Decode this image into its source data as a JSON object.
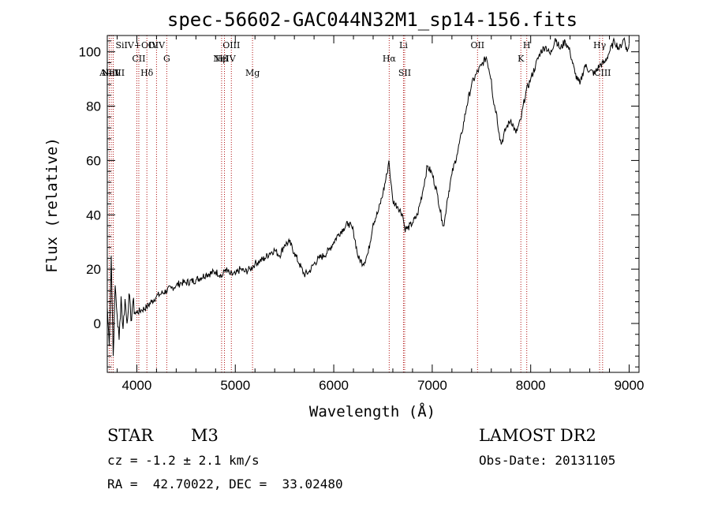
{
  "chart_data": {
    "type": "line",
    "title": "spec-56602-GAC044N32M1_sp14-156.fits",
    "xlabel": "Wavelength (Å)",
    "ylabel": "Flux (relative)",
    "xlim": [
      3700,
      9100
    ],
    "ylim": [
      -18,
      106
    ],
    "x_ticks": [
      4000,
      5000,
      6000,
      7000,
      8000,
      9000
    ],
    "y_ticks": [
      0,
      20,
      40,
      60,
      80,
      100
    ],
    "grid": false,
    "series": [
      {
        "x": [
          3700,
          3720,
          3740,
          3760,
          3780,
          3800,
          3820,
          3840,
          3860,
          3880,
          3900,
          3920,
          3940,
          3960,
          3980,
          4000,
          4050,
          4100,
          4150,
          4200,
          4250,
          4300,
          4350,
          4400,
          4450,
          4500,
          4600,
          4700,
          4800,
          4850,
          4860,
          4900,
          4950,
          5000,
          5050,
          5100,
          5150,
          5200,
          5250,
          5300,
          5350,
          5400,
          5450,
          5500,
          5550,
          5600,
          5650,
          5700,
          5750,
          5800,
          5850,
          5900,
          5950,
          6000,
          6050,
          6100,
          6150,
          6200,
          6250,
          6300,
          6350,
          6400,
          6450,
          6500,
          6540,
          6560,
          6580,
          6600,
          6650,
          6700,
          6720,
          6750,
          6800,
          6850,
          6900,
          6950,
          7000,
          7050,
          7100,
          7120,
          7150,
          7200,
          7250,
          7300,
          7350,
          7400,
          7450,
          7500,
          7550,
          7600,
          7620,
          7650,
          7680,
          7700,
          7750,
          7800,
          7850,
          7900,
          7950,
          8000,
          8050,
          8100,
          8150,
          8200,
          8250,
          8300,
          8350,
          8400,
          8450,
          8500,
          8550,
          8600,
          8650,
          8700,
          8750,
          8800,
          8850,
          8900,
          8950,
          8980,
          9000
        ],
        "y": [
          6,
          -8,
          25,
          -12,
          14,
          3,
          -6,
          10,
          -2,
          9,
          0,
          11,
          1,
          8,
          4,
          4,
          5,
          6,
          8,
          10,
          11,
          12,
          13,
          14,
          15,
          15,
          16,
          18,
          19,
          18,
          17,
          20,
          18,
          18,
          20,
          19,
          20,
          22,
          23,
          24,
          26,
          27,
          25,
          29,
          30,
          26,
          22,
          18,
          19,
          22,
          24,
          25,
          27,
          30,
          33,
          35,
          37,
          34,
          24,
          22,
          26,
          37,
          41,
          48,
          55,
          60,
          52,
          45,
          43,
          40,
          35,
          35,
          37,
          40,
          48,
          58,
          55,
          48,
          38,
          36,
          45,
          55,
          62,
          70,
          80,
          88,
          92,
          95,
          98,
          90,
          82,
          78,
          70,
          66,
          72,
          75,
          70,
          75,
          85,
          90,
          95,
          100,
          102,
          99,
          105,
          101,
          104,
          100,
          92,
          88,
          95,
          93,
          92,
          95,
          96,
          100,
          104,
          101,
          105,
          100,
          103
        ]
      }
    ],
    "line_markers": [
      {
        "name": "AlIII",
        "x": 3720
      },
      {
        "name": "NeV",
        "x": 3740
      },
      {
        "name": "NeIII",
        "x": 3760
      },
      {
        "name": "SiIV+OIV",
        "x": 4000
      },
      {
        "name": "CII",
        "x": 4020
      },
      {
        "name": "Hδ",
        "x": 4102
      },
      {
        "name": "OIV",
        "x": 4200
      },
      {
        "name": "G",
        "x": 4304
      },
      {
        "name": "OIII",
        "x": 4960
      },
      {
        "name": "Hβ",
        "x": 4861
      },
      {
        "name": "NeIV",
        "x": 4890
      },
      {
        "name": "Mg",
        "x": 5175
      },
      {
        "name": "Hα",
        "x": 6563
      },
      {
        "name": "Li",
        "x": 6708
      },
      {
        "name": "SII",
        "x": 6720
      },
      {
        "name": "OII",
        "x": 7460
      },
      {
        "name": "K",
        "x": 7900
      },
      {
        "name": "H",
        "x": 7960
      },
      {
        "name": "Hγ",
        "x": 8700
      },
      {
        "name": "CIII",
        "x": 8730
      }
    ]
  },
  "info": {
    "class": "STAR",
    "subclass": "M3",
    "survey": "LAMOST DR2",
    "cz": "cz = -1.2 ± 2.1 km/s",
    "obs_date": "Obs-Date: 20131105",
    "radec": "RA =  42.70022, DEC =  33.02480"
  }
}
